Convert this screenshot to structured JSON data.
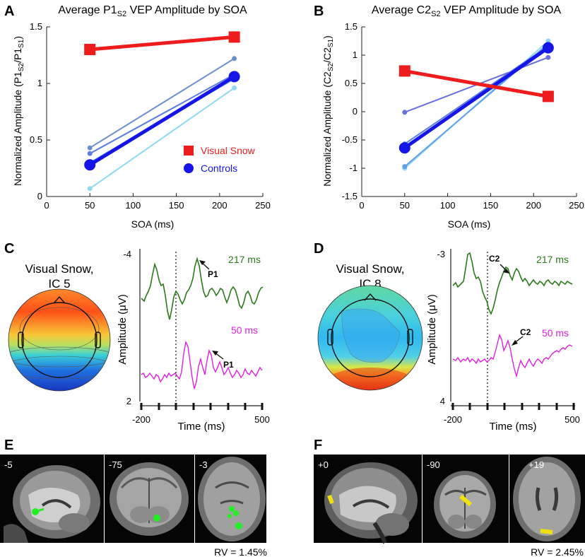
{
  "panels": {
    "A": {
      "letter": "A"
    },
    "B": {
      "letter": "B"
    },
    "C": {
      "letter": "C",
      "title_line1": "Visual Snow,",
      "title_line2": "IC 5",
      "top_label": "217 ms",
      "bottom_label": "50 ms",
      "peak_label": "P1",
      "ylabel": "Amplitude (μV)",
      "xlabel": "Time (ms)",
      "y_top": "-4",
      "y_bottom": "2",
      "x_ticks": [
        "-200",
        "500"
      ]
    },
    "D": {
      "letter": "D",
      "title_line1": "Visual Snow,",
      "title_line2": "IC 8",
      "top_label": "217 ms",
      "bottom_label": "50 ms",
      "peak_label": "C2",
      "ylabel": "Amplitude (μV)",
      "xlabel": "Time (ms)",
      "y_top": "-3",
      "y_bottom": "4",
      "x_ticks": [
        "-200",
        "500"
      ]
    },
    "E": {
      "letter": "E",
      "slices": [
        "-5",
        "-75",
        "-3"
      ],
      "rv": "RV = 1.45%"
    },
    "F": {
      "letter": "F",
      "slices": [
        "+0",
        "-90",
        "+19"
      ],
      "rv": "RV = 2.45%"
    }
  },
  "chart_data": [
    {
      "type": "line",
      "panel": "A",
      "title_main": "Average P1",
      "title_sub": "S2",
      "title_end": " VEP Amplitude by SOA",
      "xlabel": "SOA (ms)",
      "ylabel_parts": [
        "Normalized Amplitude (P1",
        "S2",
        "/P1",
        "S1",
        ")"
      ],
      "xlim": [
        0,
        250
      ],
      "ylim": [
        0,
        1.5
      ],
      "x_ticks": [
        0,
        50,
        100,
        150,
        200,
        250
      ],
      "y_ticks": [
        0,
        0.5,
        1,
        1.5
      ],
      "y_tick_labels": [
        "0",
        "0.5",
        "1",
        "1.5"
      ],
      "x": [
        50,
        217
      ],
      "series": [
        {
          "name": "Visual Snow",
          "values": [
            1.3,
            1.41
          ],
          "color": "#ee1c1c"
        },
        {
          "name": "Controls",
          "values": [
            0.28,
            1.06
          ],
          "color": "#1515e8"
        },
        {
          "name": "Control 1",
          "values": [
            0.43,
            1.22
          ],
          "color": "#6a8fd0"
        },
        {
          "name": "Control 2",
          "values": [
            0.38,
            1.08
          ],
          "color": "#5a7fe0"
        },
        {
          "name": "Control 3",
          "values": [
            0.3,
            1.04
          ],
          "color": "#6aa8e8"
        },
        {
          "name": "Control 4",
          "values": [
            0.07,
            0.96
          ],
          "color": "#8fd9f2"
        }
      ],
      "legend": [
        "Visual Snow",
        "Controls"
      ]
    },
    {
      "type": "line",
      "panel": "B",
      "title_main": "Average C2",
      "title_sub": "S2",
      "title_end": " VEP Amplitude by SOA",
      "xlabel": "SOA (ms)",
      "ylabel_parts": [
        "Normalized Amplitude (C2",
        "S2",
        "/C2",
        "S1",
        ")"
      ],
      "xlim": [
        0,
        250
      ],
      "ylim": [
        -1.5,
        1.5
      ],
      "x_ticks": [
        0,
        50,
        100,
        150,
        200,
        250
      ],
      "y_ticks": [
        -1.5,
        -1,
        -0.5,
        0,
        0.5,
        1,
        1.5
      ],
      "y_tick_labels": [
        "-1.5",
        "-1",
        "-0.5",
        "0",
        "0.5",
        "1",
        "1.5"
      ],
      "x": [
        50,
        217
      ],
      "series": [
        {
          "name": "Visual Snow",
          "values": [
            0.72,
            0.27
          ],
          "color": "#ee1c1c"
        },
        {
          "name": "Controls",
          "values": [
            -0.64,
            1.13
          ],
          "color": "#1515e8"
        },
        {
          "name": "Control 1",
          "values": [
            -0.01,
            0.96
          ],
          "color": "#6a6fe0"
        },
        {
          "name": "Control 2",
          "values": [
            -0.57,
            1.16
          ],
          "color": "#5a7fe0"
        },
        {
          "name": "Control 3",
          "values": [
            -0.97,
            1.2
          ],
          "color": "#5fa0e8"
        },
        {
          "name": "Control 4",
          "values": [
            -1.0,
            1.25
          ],
          "color": "#8fd9f2"
        }
      ]
    }
  ],
  "legend": {
    "visual_snow": "Visual Snow",
    "controls": "Controls"
  }
}
